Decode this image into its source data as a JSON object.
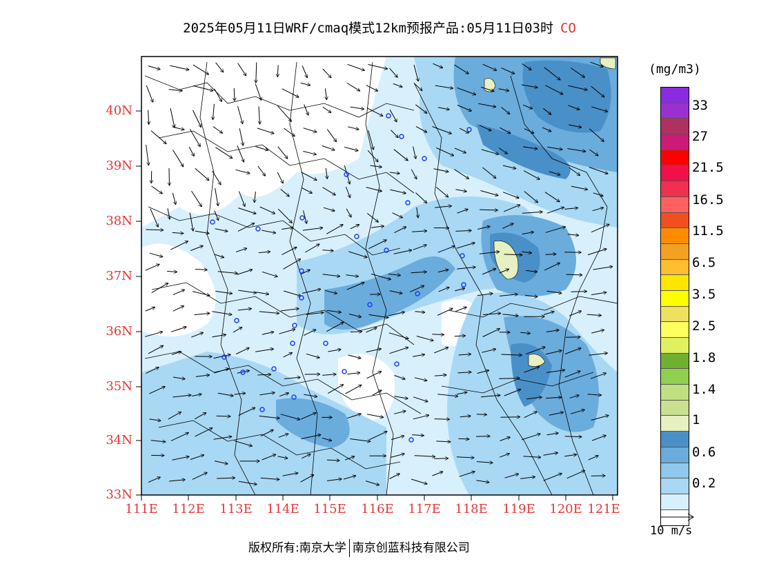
{
  "title": {
    "main": "2025年05月11日WRF/cmaq模式12km预报产品:05月11日03时",
    "species": "CO"
  },
  "lat_labels": [
    "40N",
    "39N",
    "38N",
    "37N",
    "36N",
    "35N",
    "34N",
    "33N"
  ],
  "lon_labels": [
    "111E",
    "112E",
    "113E",
    "114E",
    "115E",
    "116E",
    "117E",
    "118E",
    "119E",
    "120E",
    "121E"
  ],
  "legend": {
    "units": "(mg/m3)",
    "colors": [
      "#8a2be2",
      "#9b30d0",
      "#b03060",
      "#cc1a78",
      "#ff0000",
      "#f0104a",
      "#f03050",
      "#ff6060",
      "#f05020",
      "#ff8c00",
      "#f4a020",
      "#ffbe30",
      "#ffe600",
      "#ffff00",
      "#f0e060",
      "#ffff60",
      "#e0f060",
      "#70b030",
      "#90d050",
      "#c0e080",
      "#c8e090",
      "#e6f0c0",
      "#4a90c8",
      "#6aacdc",
      "#90c8ee",
      "#a8d8f4",
      "#d8f0fc",
      "#ffffff"
    ],
    "labels": [
      "33",
      "27",
      "21.5",
      "16.5",
      "11.5",
      "6.5",
      "3.5",
      "2.5",
      "1.8",
      "1.4",
      "1",
      "0.6",
      "0.2"
    ]
  },
  "wind_ref_label": "10 m/s",
  "footer": {
    "copyright": "版权所有:南京大学",
    "company": "南京创蓝科技有限公司"
  }
}
